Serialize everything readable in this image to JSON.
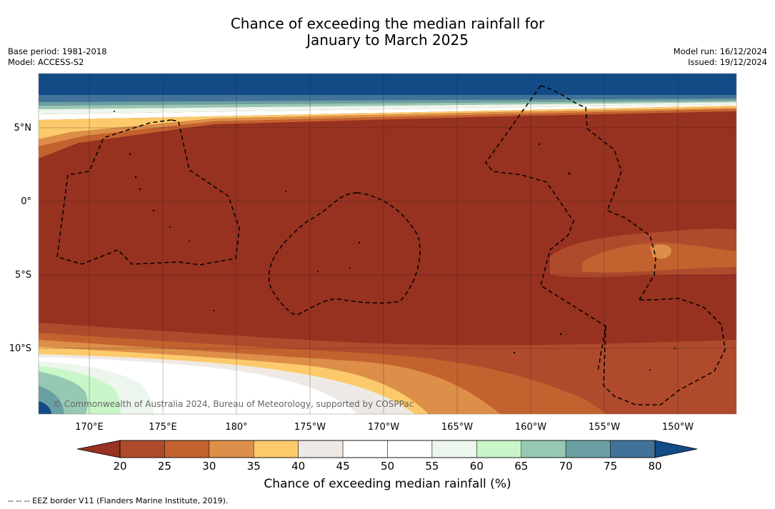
{
  "title": {
    "line1": "Chance of exceeding the median rainfall for",
    "line2": "January to March 2025"
  },
  "meta_left": {
    "base_period": "Base period: 1981-2018",
    "model": "Model: ACCESS-S2"
  },
  "meta_right": {
    "model_run": "Model run: 16/12/2024",
    "issued": "Issued: 19/12/2024"
  },
  "map": {
    "lon_labels": [
      "170°E",
      "175°E",
      "180°",
      "175°W",
      "170°W",
      "165°W",
      "160°W",
      "155°W",
      "150°W"
    ],
    "lat_labels": [
      "5°N",
      "0°",
      "5°S",
      "10°S"
    ],
    "copyright": "© Commonwealth of Australia 2024, Bureau of Meteorology, supported by COSPPac",
    "colors": {
      "deep_blue": "#134b87",
      "dark_brown": "#973120",
      "brown": "#b04a2c",
      "orange_brown": "#c4622f",
      "orange": "#dd8e48",
      "light_orange": "#fcca6a",
      "beige": "#efe9e5",
      "white": "#ffffff",
      "pale_green": "#ecf6ec",
      "light_green": "#c8f6c8",
      "sea_green": "#97c8b3",
      "teal": "#6aa0a3",
      "blue_teal": "#41739a"
    }
  },
  "colorbar": {
    "ticks": [
      "20",
      "25",
      "30",
      "35",
      "40",
      "45",
      "50",
      "55",
      "60",
      "65",
      "70",
      "75",
      "80"
    ],
    "colors": [
      "#973120",
      "#b04a2c",
      "#c4622f",
      "#dd8e48",
      "#fcca6a",
      "#efe9e5",
      "#ffffff",
      "#ffffff",
      "#ecf6ec",
      "#c8f6c8",
      "#97c8b3",
      "#6aa0a3",
      "#41739a",
      "#134b87"
    ],
    "label": "Chance of exceeding median rainfall (%)"
  },
  "eez_note": "--  --  -- EEZ border V11 (Flanders Marine Institute, 2019)."
}
